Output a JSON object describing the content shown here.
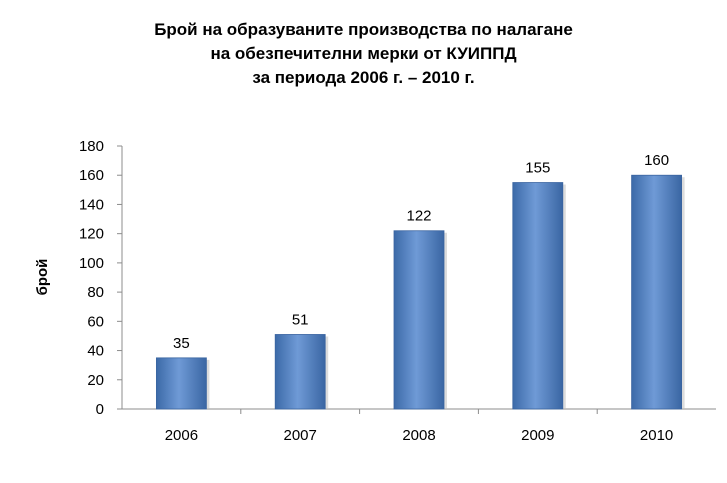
{
  "chart_data": {
    "type": "bar",
    "title_lines": [
      "Брой на образуваните производства по налагане",
      "на обезпечителни мерки от КУИППД",
      "за периода 2006 г. – 2010 г."
    ],
    "xlabel": "",
    "ylabel": "брой",
    "categories": [
      "2006",
      "2007",
      "2008",
      "2009",
      "2010"
    ],
    "values": [
      35,
      51,
      122,
      155,
      160
    ],
    "data_labels": [
      "35",
      "51",
      "122",
      "155",
      "160"
    ],
    "ylim": [
      0,
      180
    ],
    "yticks": [
      0,
      20,
      40,
      60,
      80,
      100,
      120,
      140,
      160,
      180
    ],
    "ytick_labels": [
      "0",
      "20",
      "40",
      "60",
      "80",
      "100",
      "120",
      "140",
      "160",
      "180"
    ],
    "grid": false,
    "legend": "none",
    "bar_color": "#4f81bd"
  }
}
